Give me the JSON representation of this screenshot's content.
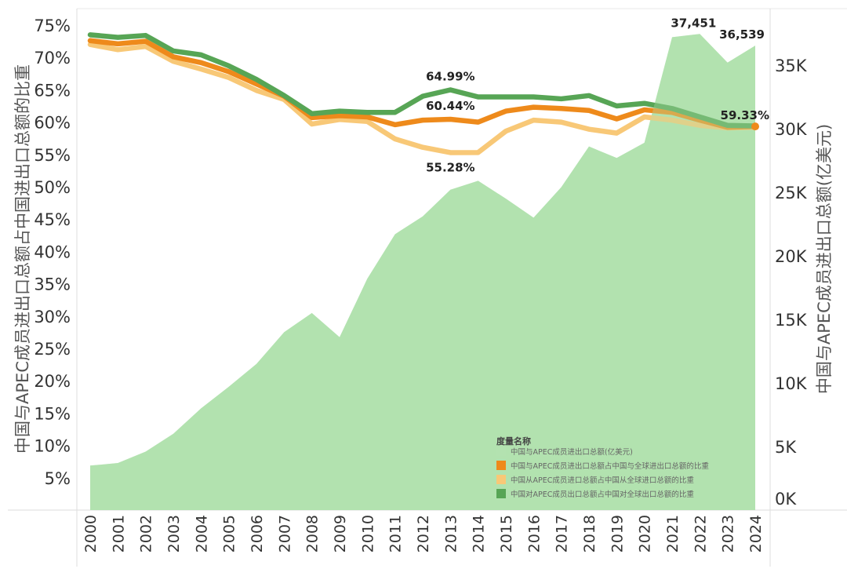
{
  "chart_data": {
    "type": "line+area (dual axis)",
    "title": "",
    "x": [
      "2000",
      "2001",
      "2002",
      "2003",
      "2004",
      "2005",
      "2006",
      "2007",
      "2008",
      "2009",
      "2010",
      "2011",
      "2012",
      "2013",
      "2014",
      "2015",
      "2016",
      "2017",
      "2018",
      "2019",
      "2020",
      "2021",
      "2022",
      "2023",
      "2024"
    ],
    "xlabel": "",
    "ylabel_left": "中国与APEC成员进出口总额占中国进出口总额的比重",
    "ylabel_right": "中国与APEC成员进出口总额(亿美元)",
    "ylim_left": [
      0,
      75
    ],
    "ylim_right": [
      0,
      35000
    ],
    "yticks_left": [
      "5%",
      "10%",
      "15%",
      "20%",
      "25%",
      "30%",
      "35%",
      "40%",
      "45%",
      "50%",
      "55%",
      "60%",
      "65%",
      "70%",
      "75%"
    ],
    "yticks_left_values": [
      5,
      10,
      15,
      20,
      25,
      30,
      35,
      40,
      45,
      50,
      55,
      60,
      65,
      70,
      75
    ],
    "yticks_right": [
      "0K",
      "5K",
      "10K",
      "15K",
      "20K",
      "25K",
      "30K",
      "35K"
    ],
    "yticks_right_values": [
      0,
      5000,
      10000,
      15000,
      20000,
      25000,
      30000,
      35000
    ],
    "grid": false,
    "legend": {
      "title": "度量名称",
      "placement": "bottom-right"
    },
    "series": [
      {
        "name": "中国与APEC成员进出口总额(亿美元)",
        "type": "area",
        "axis": "right",
        "color": "#b3e2b0",
        "values": [
          3500,
          3700,
          4600,
          6000,
          8000,
          9700,
          11500,
          14000,
          15500,
          13600,
          18200,
          21700,
          23100,
          25200,
          25900,
          24500,
          23000,
          25400,
          28600,
          27700,
          28900,
          37200,
          37451,
          35200,
          36539
        ]
      },
      {
        "name": "中国与APEC成员进出口总额占中国与全球进出口总额的比重",
        "type": "line",
        "axis": "left",
        "color": "#ee8a1b",
        "values": [
          72.6,
          72.1,
          72.5,
          70.1,
          69.2,
          67.8,
          65.9,
          64.0,
          60.7,
          61.0,
          60.8,
          59.6,
          60.3,
          60.44,
          60.0,
          61.7,
          62.3,
          62.1,
          61.8,
          60.5,
          61.9,
          61.5,
          60.3,
          59.2,
          59.33
        ]
      },
      {
        "name": "中国从APEC成员进口总额占中国从全球进口总额的比重",
        "type": "line",
        "axis": "left",
        "color": "#f8c877",
        "values": [
          72.0,
          71.2,
          71.7,
          69.4,
          68.2,
          66.9,
          64.9,
          63.5,
          59.7,
          60.4,
          60.1,
          57.4,
          56.1,
          55.28,
          55.3,
          58.6,
          60.3,
          60.0,
          58.9,
          58.3,
          60.8,
          60.3,
          59.5,
          59.1,
          59.2
        ]
      },
      {
        "name": "中国对APEC成员出口总额占中国对全球出口总额的比重",
        "type": "line",
        "axis": "left",
        "color": "#57a555",
        "values": [
          73.5,
          73.1,
          73.4,
          71.0,
          70.4,
          68.7,
          66.6,
          64.1,
          61.3,
          61.7,
          61.5,
          61.5,
          64.0,
          64.99,
          63.9,
          63.9,
          63.9,
          63.6,
          64.1,
          62.5,
          62.9,
          62.1,
          60.8,
          59.5,
          59.4
        ]
      }
    ],
    "annotations": [
      {
        "text": "64.99%",
        "series": 3,
        "x": "2013",
        "position": "above"
      },
      {
        "text": "60.44%",
        "series": 1,
        "x": "2013",
        "position": "above"
      },
      {
        "text": "55.28%",
        "series": 2,
        "x": "2013",
        "position": "below"
      },
      {
        "text": "37,451",
        "series": 0,
        "x": "2022",
        "position": "above"
      },
      {
        "text": "36,539",
        "series": 0,
        "x": "2024",
        "position": "above"
      },
      {
        "text": "59.33%",
        "series": 1,
        "x": "2024",
        "position": "above"
      }
    ]
  }
}
